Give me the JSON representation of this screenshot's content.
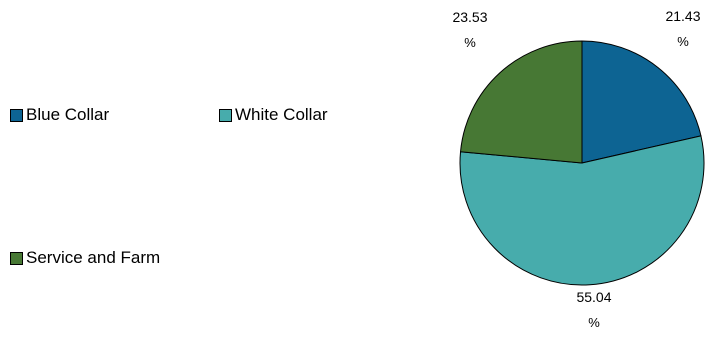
{
  "chart_data": {
    "type": "pie",
    "title": "",
    "legend_position": "left",
    "slices": [
      {
        "name": "Blue Collar",
        "value": 21.43,
        "label": "21.43",
        "unit": "%",
        "color": "#0d6493"
      },
      {
        "name": "White Collar",
        "value": 55.04,
        "label": "55.04",
        "unit": "%",
        "color": "#47acac"
      },
      {
        "name": "Service and Farm",
        "value": 23.53,
        "label": "23.53",
        "unit": "%",
        "color": "#477834"
      }
    ]
  }
}
